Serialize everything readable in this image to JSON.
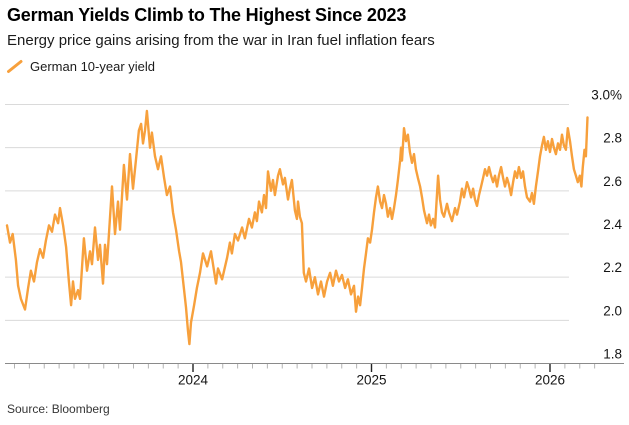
{
  "header": {
    "title": "German Yields Climb to The Highest Since 2023",
    "subtitle": "Energy price gains arising from the war in Iran fuel inflation fears"
  },
  "legend": {
    "label": "German 10-year yield",
    "marker": "diagonal-line"
  },
  "source": "Source: Bloomberg",
  "colors": {
    "line": "#F7A03C",
    "grid": "#DADADA",
    "axis_line": "#8A8A8A",
    "tick_minor": "#B3B3B3",
    "tick_major": "#222222",
    "axis_text": "#151515",
    "background": "#FFFFFF"
  },
  "chart_data": {
    "type": "line",
    "title": "German Yields Climb to The Highest Since 2023",
    "subtitle": "Energy price gains arising from the war in Iran fuel inflation fears",
    "unit": "%",
    "grid": "horizontal",
    "legend_position": "top-left",
    "x_axis": {
      "type": "time",
      "range_years": [
        2022.958,
        2026.333
      ],
      "major_ticks": [
        2024,
        2025,
        2026
      ],
      "major_tick_labels": [
        "2024",
        "2025",
        "2026"
      ],
      "minor_tick_interval_years": 0.083333
    },
    "y_axis": {
      "side": "right",
      "range": [
        1.8,
        3.0
      ],
      "ticks": [
        3.0,
        2.8,
        2.6,
        2.4,
        2.2,
        2.0,
        1.8
      ],
      "tick_labels": [
        "3.0%",
        "2.8",
        "2.6",
        "2.4",
        "2.2",
        "2.0",
        "1.8"
      ]
    },
    "series": [
      {
        "name": "German 10-year yield",
        "color": "#F7A03C",
        "points": [
          [
            2022.958,
            2.44
          ],
          [
            2022.975,
            2.36
          ],
          [
            2022.99,
            2.4
          ],
          [
            2023.008,
            2.28
          ],
          [
            2023.02,
            2.16
          ],
          [
            2023.036,
            2.1
          ],
          [
            2023.059,
            2.05
          ],
          [
            2023.076,
            2.15
          ],
          [
            2023.092,
            2.23
          ],
          [
            2023.109,
            2.18
          ],
          [
            2023.126,
            2.27
          ],
          [
            2023.143,
            2.33
          ],
          [
            2023.16,
            2.29
          ],
          [
            2023.176,
            2.37
          ],
          [
            2023.193,
            2.44
          ],
          [
            2023.21,
            2.41
          ],
          [
            2023.227,
            2.49
          ],
          [
            2023.244,
            2.45
          ],
          [
            2023.255,
            2.52
          ],
          [
            2023.272,
            2.44
          ],
          [
            2023.289,
            2.34
          ],
          [
            2023.305,
            2.18
          ],
          [
            2023.317,
            2.07
          ],
          [
            2023.328,
            2.18
          ],
          [
            2023.339,
            2.1
          ],
          [
            2023.356,
            2.14
          ],
          [
            2023.367,
            2.1
          ],
          [
            2023.389,
            2.38
          ],
          [
            2023.406,
            2.23
          ],
          [
            2023.423,
            2.32
          ],
          [
            2023.434,
            2.26
          ],
          [
            2023.451,
            2.43
          ],
          [
            2023.468,
            2.28
          ],
          [
            2023.479,
            2.35
          ],
          [
            2023.496,
            2.17
          ],
          [
            2023.507,
            2.35
          ],
          [
            2023.518,
            2.26
          ],
          [
            2023.546,
            2.62
          ],
          [
            2023.563,
            2.4
          ],
          [
            2023.58,
            2.55
          ],
          [
            2023.591,
            2.42
          ],
          [
            2023.613,
            2.72
          ],
          [
            2023.63,
            2.56
          ],
          [
            2023.647,
            2.77
          ],
          [
            2023.664,
            2.61
          ],
          [
            2023.681,
            2.75
          ],
          [
            2023.697,
            2.88
          ],
          [
            2023.709,
            2.91
          ],
          [
            2023.72,
            2.82
          ],
          [
            2023.731,
            2.88
          ],
          [
            2023.742,
            2.97
          ],
          [
            2023.759,
            2.8
          ],
          [
            2023.77,
            2.87
          ],
          [
            2023.787,
            2.76
          ],
          [
            2023.804,
            2.7
          ],
          [
            2023.821,
            2.76
          ],
          [
            2023.838,
            2.66
          ],
          [
            2023.854,
            2.58
          ],
          [
            2023.871,
            2.62
          ],
          [
            2023.888,
            2.5
          ],
          [
            2023.905,
            2.42
          ],
          [
            2023.922,
            2.32
          ],
          [
            2023.933,
            2.27
          ],
          [
            2023.95,
            2.14
          ],
          [
            2023.961,
            2.06
          ],
          [
            2023.972,
            1.95
          ],
          [
            2023.98,
            1.89
          ],
          [
            2023.989,
            1.99
          ],
          [
            2024.006,
            2.07
          ],
          [
            2024.022,
            2.15
          ],
          [
            2024.039,
            2.22
          ],
          [
            2024.056,
            2.31
          ],
          [
            2024.079,
            2.25
          ],
          [
            2024.101,
            2.32
          ],
          [
            2024.129,
            2.17
          ],
          [
            2024.14,
            2.24
          ],
          [
            2024.163,
            2.19
          ],
          [
            2024.191,
            2.29
          ],
          [
            2024.207,
            2.36
          ],
          [
            2024.218,
            2.31
          ],
          [
            2024.235,
            2.4
          ],
          [
            2024.252,
            2.37
          ],
          [
            2024.275,
            2.43
          ],
          [
            2024.291,
            2.38
          ],
          [
            2024.314,
            2.47
          ],
          [
            2024.33,
            2.43
          ],
          [
            2024.347,
            2.5
          ],
          [
            2024.358,
            2.46
          ],
          [
            2024.37,
            2.55
          ],
          [
            2024.386,
            2.5
          ],
          [
            2024.398,
            2.58
          ],
          [
            2024.409,
            2.52
          ],
          [
            2024.42,
            2.69
          ],
          [
            2024.437,
            2.6
          ],
          [
            2024.448,
            2.65
          ],
          [
            2024.459,
            2.58
          ],
          [
            2024.476,
            2.67
          ],
          [
            2024.487,
            2.7
          ],
          [
            2024.504,
            2.63
          ],
          [
            2024.515,
            2.66
          ],
          [
            2024.532,
            2.56
          ],
          [
            2024.543,
            2.61
          ],
          [
            2024.554,
            2.65
          ],
          [
            2024.571,
            2.51
          ],
          [
            2024.582,
            2.47
          ],
          [
            2024.588,
            2.55
          ],
          [
            2024.599,
            2.48
          ],
          [
            2024.61,
            2.45
          ],
          [
            2024.621,
            2.22
          ],
          [
            2024.633,
            2.18
          ],
          [
            2024.65,
            2.24
          ],
          [
            2024.667,
            2.15
          ],
          [
            2024.683,
            2.2
          ],
          [
            2024.7,
            2.12
          ],
          [
            2024.717,
            2.18
          ],
          [
            2024.734,
            2.11
          ],
          [
            2024.751,
            2.18
          ],
          [
            2024.768,
            2.22
          ],
          [
            2024.784,
            2.16
          ],
          [
            2024.801,
            2.23
          ],
          [
            2024.818,
            2.18
          ],
          [
            2024.835,
            2.21
          ],
          [
            2024.852,
            2.15
          ],
          [
            2024.868,
            2.19
          ],
          [
            2024.885,
            2.12
          ],
          [
            2024.902,
            2.16
          ],
          [
            2024.913,
            2.04
          ],
          [
            2024.925,
            2.11
          ],
          [
            2024.936,
            2.07
          ],
          [
            2024.947,
            2.15
          ],
          [
            2024.958,
            2.24
          ],
          [
            2024.969,
            2.31
          ],
          [
            2024.98,
            2.38
          ],
          [
            2024.992,
            2.36
          ],
          [
            2025.003,
            2.42
          ],
          [
            2025.014,
            2.5
          ],
          [
            2025.025,
            2.57
          ],
          [
            2025.036,
            2.62
          ],
          [
            2025.048,
            2.55
          ],
          [
            2025.059,
            2.52
          ],
          [
            2025.07,
            2.58
          ],
          [
            2025.081,
            2.54
          ],
          [
            2025.092,
            2.48
          ],
          [
            2025.104,
            2.52
          ],
          [
            2025.115,
            2.47
          ],
          [
            2025.126,
            2.52
          ],
          [
            2025.137,
            2.58
          ],
          [
            2025.148,
            2.65
          ],
          [
            2025.16,
            2.74
          ],
          [
            2025.165,
            2.8
          ],
          [
            2025.171,
            2.74
          ],
          [
            2025.182,
            2.89
          ],
          [
            2025.193,
            2.83
          ],
          [
            2025.204,
            2.86
          ],
          [
            2025.215,
            2.78
          ],
          [
            2025.227,
            2.73
          ],
          [
            2025.238,
            2.77
          ],
          [
            2025.249,
            2.7
          ],
          [
            2025.26,
            2.66
          ],
          [
            2025.272,
            2.62
          ],
          [
            2025.283,
            2.57
          ],
          [
            2025.294,
            2.51
          ],
          [
            2025.311,
            2.45
          ],
          [
            2025.322,
            2.49
          ],
          [
            2025.333,
            2.44
          ],
          [
            2025.345,
            2.47
          ],
          [
            2025.356,
            2.43
          ],
          [
            2025.373,
            2.67
          ],
          [
            2025.384,
            2.56
          ],
          [
            2025.395,
            2.5
          ],
          [
            2025.406,
            2.48
          ],
          [
            2025.423,
            2.54
          ],
          [
            2025.434,
            2.5
          ],
          [
            2025.451,
            2.46
          ],
          [
            2025.468,
            2.52
          ],
          [
            2025.479,
            2.49
          ],
          [
            2025.496,
            2.55
          ],
          [
            2025.507,
            2.61
          ],
          [
            2025.518,
            2.57
          ],
          [
            2025.535,
            2.64
          ],
          [
            2025.546,
            2.61
          ],
          [
            2025.558,
            2.57
          ],
          [
            2025.569,
            2.61
          ],
          [
            2025.58,
            2.56
          ],
          [
            2025.591,
            2.53
          ],
          [
            2025.602,
            2.58
          ],
          [
            2025.614,
            2.62
          ],
          [
            2025.625,
            2.66
          ],
          [
            2025.636,
            2.7
          ],
          [
            2025.647,
            2.67
          ],
          [
            2025.658,
            2.71
          ],
          [
            2025.67,
            2.67
          ],
          [
            2025.681,
            2.64
          ],
          [
            2025.692,
            2.67
          ],
          [
            2025.703,
            2.62
          ],
          [
            2025.714,
            2.67
          ],
          [
            2025.726,
            2.71
          ],
          [
            2025.737,
            2.66
          ],
          [
            2025.748,
            2.62
          ],
          [
            2025.759,
            2.66
          ],
          [
            2025.77,
            2.63
          ],
          [
            2025.782,
            2.58
          ],
          [
            2025.793,
            2.64
          ],
          [
            2025.804,
            2.69
          ],
          [
            2025.815,
            2.66
          ],
          [
            2025.826,
            2.71
          ],
          [
            2025.838,
            2.66
          ],
          [
            2025.849,
            2.69
          ],
          [
            2025.86,
            2.62
          ],
          [
            2025.871,
            2.57
          ],
          [
            2025.888,
            2.55
          ],
          [
            2025.899,
            2.59
          ],
          [
            2025.91,
            2.54
          ],
          [
            2025.921,
            2.62
          ],
          [
            2025.933,
            2.69
          ],
          [
            2025.944,
            2.76
          ],
          [
            2025.955,
            2.81
          ],
          [
            2025.966,
            2.85
          ],
          [
            2025.977,
            2.79
          ],
          [
            2025.988,
            2.83
          ],
          [
            2026.0,
            2.78
          ],
          [
            2026.011,
            2.84
          ],
          [
            2026.022,
            2.8
          ],
          [
            2026.033,
            2.77
          ],
          [
            2026.045,
            2.82
          ],
          [
            2026.056,
            2.79
          ],
          [
            2026.067,
            2.86
          ],
          [
            2026.078,
            2.81
          ],
          [
            2026.089,
            2.79
          ],
          [
            2026.1,
            2.89
          ],
          [
            2026.112,
            2.83
          ],
          [
            2026.123,
            2.76
          ],
          [
            2026.134,
            2.7
          ],
          [
            2026.145,
            2.67
          ],
          [
            2026.156,
            2.64
          ],
          [
            2026.167,
            2.67
          ],
          [
            2026.176,
            2.62
          ],
          [
            2026.184,
            2.71
          ],
          [
            2026.193,
            2.79
          ],
          [
            2026.201,
            2.76
          ],
          [
            2026.21,
            2.94
          ]
        ]
      }
    ]
  }
}
